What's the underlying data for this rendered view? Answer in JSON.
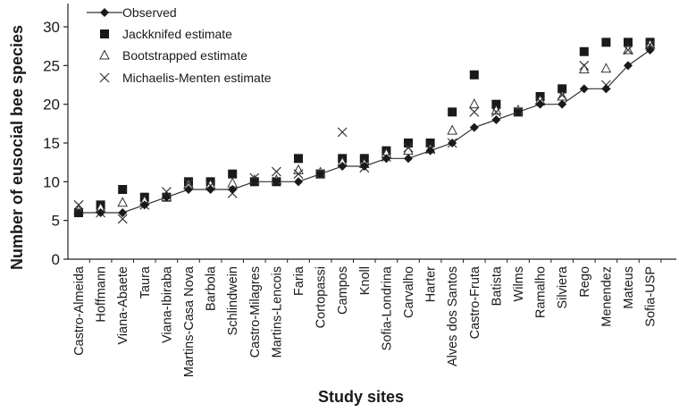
{
  "chart_data": {
    "type": "line",
    "title": "",
    "xlabel": "Study sites",
    "ylabel": "Number of eusocial bee species",
    "ylim": [
      0,
      33
    ],
    "yticks": [
      0,
      5,
      10,
      15,
      20,
      25,
      30
    ],
    "grid": false,
    "legend_position": "top-left",
    "categories": [
      "Castro-Almeida",
      "Hoffmann",
      "Viana-Abaete",
      "Taura",
      "Viana-Ibiraba",
      "Martins-Casa Nova",
      "Barbola",
      "Schlindwein",
      "Castro-Milagres",
      "Martins-Lencois",
      "Faria",
      "Cortopassi",
      "Campos",
      "Knoll",
      "Sofia-Londrina",
      "Carvalho",
      "Harter",
      "Alves dos Santos",
      "Castro-Fruta",
      "Batista",
      "Wilms",
      "Ramalho",
      "Silviera",
      "Rego",
      "Menendez",
      "Mateus",
      "Sofia-USP"
    ],
    "series": [
      {
        "name": "Observed",
        "marker": "diamond",
        "line": true,
        "values": [
          6,
          6,
          6,
          7,
          8,
          9,
          9,
          9,
          10,
          10,
          10,
          11,
          12,
          12,
          13,
          13,
          14,
          15,
          17,
          18,
          19,
          20,
          20,
          22,
          22,
          25,
          27
        ]
      },
      {
        "name": "Jackknifed estimate",
        "marker": "square",
        "line": false,
        "values": [
          6,
          7,
          9,
          8,
          8,
          10,
          10,
          11,
          10,
          10,
          13,
          11,
          13,
          13,
          14,
          15,
          15,
          19,
          23.8,
          20,
          19,
          21,
          22,
          26.8,
          28,
          28,
          28
        ]
      },
      {
        "name": "Bootstrapped estimate",
        "marker": "triangle",
        "line": false,
        "values": [
          6.3,
          6.6,
          7.3,
          7.5,
          8,
          9.6,
          9.6,
          9.8,
          10.2,
          10.2,
          11.5,
          11.2,
          12.5,
          12.3,
          13.6,
          14,
          14.2,
          16.6,
          20,
          19.2,
          19.2,
          20.5,
          21,
          24.5,
          24.6,
          27,
          27.7
        ]
      },
      {
        "name": "Michaelis-Menten estimate",
        "marker": "x",
        "line": false,
        "values": [
          7,
          6,
          5.2,
          7,
          8.7,
          9.8,
          9.5,
          8.5,
          10.5,
          11.3,
          11,
          11,
          16.4,
          11.8,
          13.2,
          14.4,
          14.2,
          15,
          19,
          19,
          19,
          20.4,
          21.2,
          25,
          22.5,
          27,
          27.7
        ]
      }
    ]
  }
}
